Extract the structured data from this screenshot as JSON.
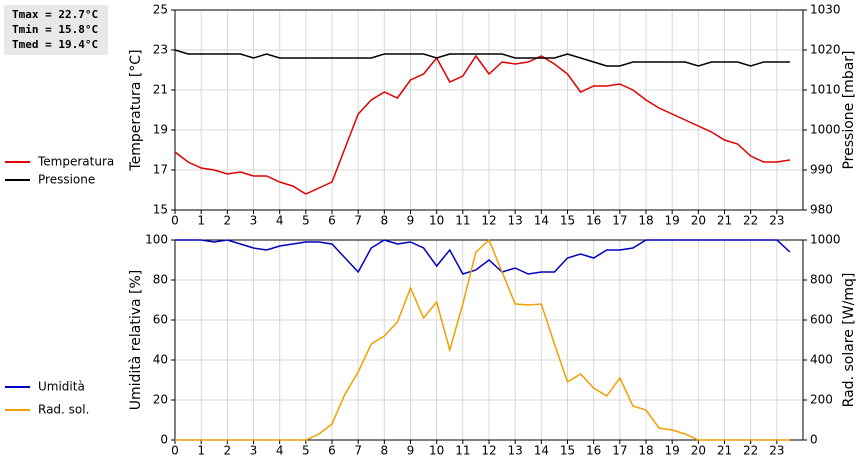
{
  "chart_data": [
    {
      "type": "line",
      "annotations": [
        "Tmax = 22.7°C",
        "Tmin = 15.8°C",
        "Tmed = 19.4°C"
      ],
      "ylabel": "Temperatura [°C]",
      "y2label": "Pressione [mbar]",
      "x": [
        0,
        0.5,
        1,
        1.5,
        2,
        2.5,
        3,
        3.5,
        4,
        4.5,
        5,
        5.5,
        6,
        6.5,
        7,
        7.5,
        8,
        8.5,
        9,
        9.5,
        10,
        10.5,
        11,
        11.5,
        12,
        12.5,
        13,
        13.5,
        14,
        14.5,
        15,
        15.5,
        16,
        16.5,
        17,
        17.5,
        18,
        18.5,
        19,
        19.5,
        20,
        20.5,
        21,
        21.5,
        22,
        22.5,
        23,
        23.5
      ],
      "xlim": [
        0,
        24
      ],
      "xticks": [
        0,
        1,
        2,
        3,
        4,
        5,
        6,
        7,
        8,
        9,
        10,
        11,
        12,
        13,
        14,
        15,
        16,
        17,
        18,
        19,
        20,
        21,
        22,
        23
      ],
      "ylim": [
        15,
        25
      ],
      "yticks": [
        15,
        17,
        19,
        21,
        23,
        25
      ],
      "y2lim": [
        980,
        1030
      ],
      "y2ticks": [
        980,
        990,
        1000,
        1010,
        1020,
        1030
      ],
      "grid": true,
      "series": [
        {
          "name": "Temperatura",
          "color": "#e00000",
          "values": [
            17.9,
            17.4,
            17.1,
            17.0,
            16.8,
            16.9,
            16.7,
            16.7,
            16.4,
            16.2,
            15.8,
            16.1,
            16.4,
            18.1,
            19.8,
            20.5,
            20.9,
            20.6,
            21.5,
            21.8,
            22.6,
            21.4,
            21.7,
            22.7,
            21.8,
            22.4,
            22.3,
            22.4,
            22.7,
            22.3,
            21.8,
            20.9,
            21.2,
            21.2,
            21.3,
            21.0,
            20.5,
            20.1,
            19.8,
            19.5,
            19.2,
            18.9,
            18.5,
            18.3,
            17.7,
            17.4,
            17.4,
            17.5
          ]
        },
        {
          "name": "Pressione",
          "color": "#000000",
          "axis": "y2",
          "values": [
            1020,
            1019,
            1019,
            1019,
            1019,
            1019,
            1018,
            1019,
            1018,
            1018,
            1018,
            1018,
            1018,
            1018,
            1018,
            1018,
            1019,
            1019,
            1019,
            1019,
            1018,
            1019,
            1019,
            1019,
            1019,
            1019,
            1018,
            1018,
            1018,
            1018,
            1019,
            1018,
            1017,
            1016,
            1016,
            1017,
            1017,
            1017,
            1017,
            1017,
            1016,
            1017,
            1017,
            1017,
            1016,
            1017,
            1017,
            1017
          ]
        }
      ]
    },
    {
      "type": "line",
      "ylabel": "Umidità relativa [%]",
      "y2label": "Rad. solare [W/mq]",
      "x": [
        0,
        0.5,
        1,
        1.5,
        2,
        2.5,
        3,
        3.5,
        4,
        4.5,
        5,
        5.5,
        6,
        6.5,
        7,
        7.5,
        8,
        8.5,
        9,
        9.5,
        10,
        10.5,
        11,
        11.5,
        12,
        12.5,
        13,
        13.5,
        14,
        14.5,
        15,
        15.5,
        16,
        16.5,
        17,
        17.5,
        18,
        18.5,
        19,
        19.5,
        20,
        20.5,
        21,
        21.5,
        22,
        22.5,
        23,
        23.5
      ],
      "xlim": [
        0,
        24
      ],
      "xticks": [
        0,
        1,
        2,
        3,
        4,
        5,
        6,
        7,
        8,
        9,
        10,
        11,
        12,
        13,
        14,
        15,
        16,
        17,
        18,
        19,
        20,
        21,
        22,
        23
      ],
      "ylim": [
        0,
        100
      ],
      "yticks": [
        0,
        20,
        40,
        60,
        80,
        100
      ],
      "y2lim": [
        0,
        1000
      ],
      "y2ticks": [
        0,
        200,
        400,
        600,
        800,
        1000
      ],
      "grid": true,
      "series": [
        {
          "name": "Umidità",
          "color": "#0000c0",
          "values": [
            100,
            100,
            100,
            99,
            100,
            98,
            96,
            95,
            97,
            98,
            99,
            99,
            98,
            91,
            84,
            96,
            100,
            98,
            99,
            96,
            87,
            95,
            83,
            85,
            90,
            84,
            86,
            83,
            84,
            84,
            91,
            93,
            91,
            95,
            95,
            96,
            100,
            100,
            100,
            100,
            100,
            100,
            100,
            100,
            100,
            100,
            100,
            94
          ]
        },
        {
          "name": "Rad. sol.",
          "color": "#f0a000",
          "axis": "y2",
          "values": [
            0,
            0,
            0,
            0,
            0,
            0,
            0,
            0,
            0,
            0,
            0,
            30,
            80,
            230,
            340,
            480,
            520,
            590,
            760,
            610,
            690,
            450,
            680,
            940,
            1000,
            840,
            680,
            675,
            680,
            480,
            290,
            330,
            260,
            220,
            310,
            170,
            150,
            60,
            50,
            30,
            0,
            0,
            0,
            0,
            0,
            0,
            0,
            0
          ]
        }
      ]
    }
  ]
}
